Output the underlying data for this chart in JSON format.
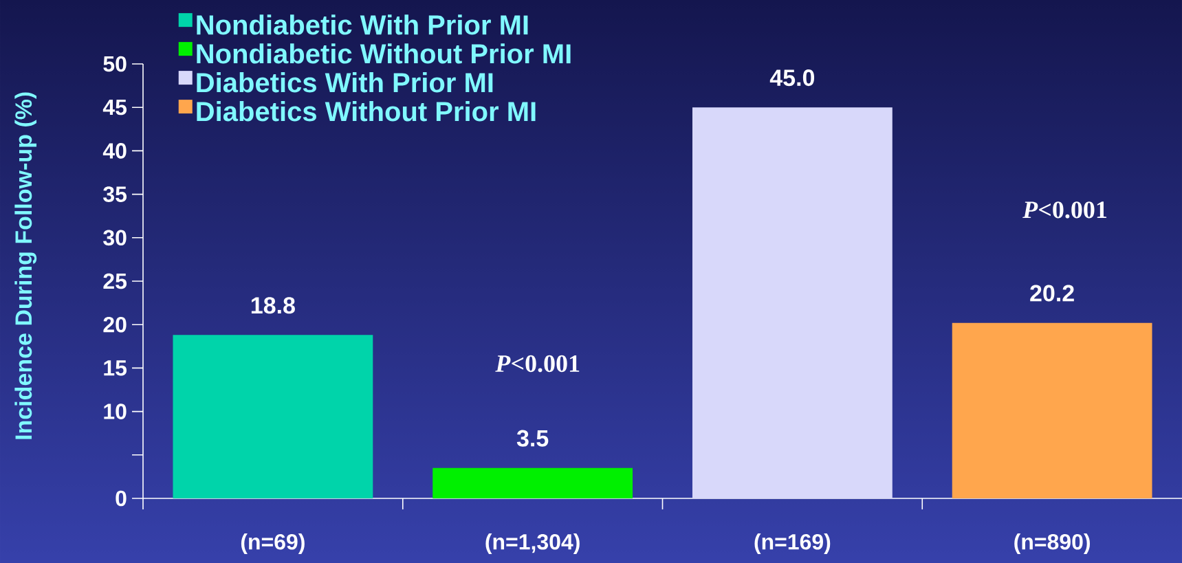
{
  "chart_data": {
    "type": "bar",
    "ylabel": "Incidence During Follow-up (%)",
    "categories": [
      "(n=69)",
      "(n=1,304)",
      "(n=169)",
      "(n=890)"
    ],
    "series": [
      {
        "name": "Nondiabetic With Prior MI",
        "color": "#00d4aa",
        "values": [
          18.8,
          null,
          null,
          null
        ],
        "value_labels": [
          "18.8",
          null,
          null,
          null
        ]
      },
      {
        "name": "Nondiabetic Without Prior MI",
        "color": "#00f000",
        "values": [
          null,
          3.5,
          null,
          null
        ],
        "value_labels": [
          null,
          "3.5",
          null,
          null
        ]
      },
      {
        "name": "Diabetics With Prior MI",
        "color": "#d8d8fa",
        "values": [
          null,
          null,
          45.0,
          null
        ],
        "value_labels": [
          null,
          null,
          "45.0",
          null
        ]
      },
      {
        "name": "Diabetics Without Prior MI",
        "color": "#ffa64d",
        "values": [
          null,
          null,
          null,
          20.2
        ],
        "value_labels": [
          null,
          null,
          null,
          "20.2"
        ]
      }
    ],
    "ylim": [
      0,
      50
    ],
    "yticks": [
      0,
      {
        "value": 5,
        "label": null
      },
      10,
      15,
      20,
      25,
      30,
      35,
      40,
      45,
      50
    ],
    "legend": "top left",
    "annotations": [
      "*P*<0.001",
      "*P*<0.001"
    ]
  }
}
